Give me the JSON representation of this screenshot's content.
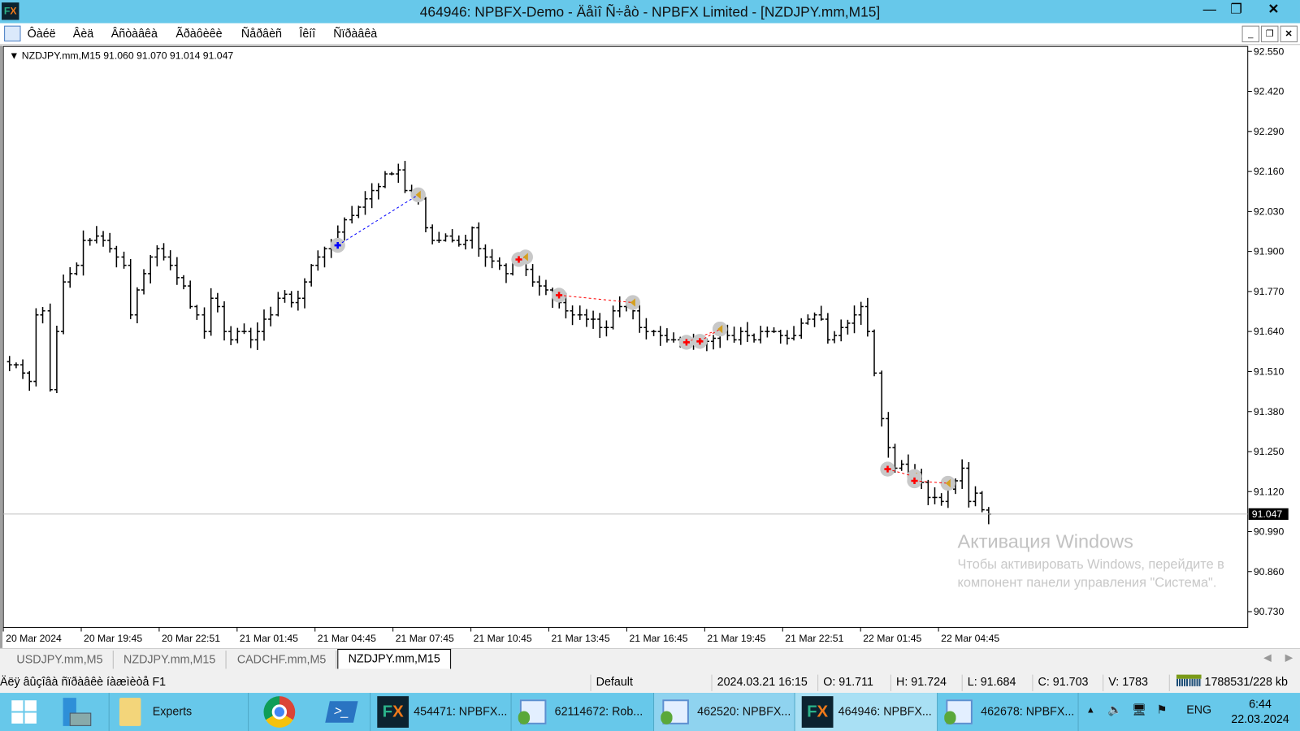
{
  "window": {
    "title": "464946: NPBFX-Demo - Äåìî Ñ÷åò - NPBFX Limited - [NZDJPY.mm,M15]",
    "controls": [
      "minimize",
      "restore",
      "close"
    ]
  },
  "menu": {
    "items": [
      "Ôàéë",
      "Âèä",
      "Âñòàâêà",
      "Ãðàôèêè",
      "Ñåðâèñ",
      "Îêíî",
      "Ñïðàâêà"
    ]
  },
  "chart": {
    "info": "NZDJPY.mm,M15  91.060 91.070 91.014 91.047",
    "current_price": "91.047",
    "watermark_title": "Активация Windows",
    "watermark_text": "Чтобы активировать Windows, перейдите в компонент панели управления \"Система\".",
    "colors": {
      "bars": "#000000",
      "buy": "#0000ff",
      "sell": "#ff0000",
      "close_marker": "#d4a020",
      "price_line": "#c0c0c0"
    }
  },
  "chart_data": {
    "type": "ohlc",
    "symbol": "NZDJPY.mm",
    "timeframe": "M15",
    "ylim": [
      90.73,
      92.55
    ],
    "y_ticks": [
      "92.550",
      "92.420",
      "92.290",
      "92.160",
      "92.030",
      "91.900",
      "91.770",
      "91.640",
      "91.510",
      "91.380",
      "91.250",
      "91.120",
      "90.990",
      "90.860",
      "90.730"
    ],
    "x_ticks": [
      "20 Mar 2024",
      "20 Mar 19:45",
      "20 Mar 22:51",
      "21 Mar 01:45",
      "21 Mar 04:45",
      "21 Mar 07:45",
      "21 Mar 10:45",
      "21 Mar 13:45",
      "21 Mar 16:45",
      "21 Mar 19:45",
      "21 Mar 22:51",
      "22 Mar 01:45",
      "22 Mar 04:45"
    ],
    "close": [
      91.532,
      91.532,
      91.505,
      91.478,
      91.694,
      91.707,
      91.451,
      91.64,
      91.801,
      91.828,
      91.855,
      91.936,
      91.936,
      91.95,
      91.936,
      91.909,
      91.882,
      91.855,
      91.694,
      91.775,
      91.828,
      91.882,
      91.909,
      91.882,
      91.855,
      91.815,
      91.788,
      91.721,
      91.694,
      91.64,
      91.748,
      91.721,
      91.64,
      91.613,
      91.64,
      91.64,
      91.613,
      91.64,
      91.68,
      91.694,
      91.748,
      91.761,
      91.734,
      91.748,
      91.801,
      91.855,
      91.882,
      91.909,
      91.923,
      91.963,
      92.003,
      92.017,
      92.044,
      92.071,
      92.098,
      92.111,
      92.152,
      92.152,
      92.165,
      92.098,
      92.084,
      92.071,
      91.977,
      91.936,
      91.936,
      91.95,
      91.936,
      91.923,
      91.936,
      91.977,
      91.909,
      91.882,
      91.869,
      91.855,
      91.828,
      91.869,
      91.882,
      91.842,
      91.801,
      91.788,
      91.775,
      91.748,
      91.734,
      91.707,
      91.694,
      91.694,
      91.68,
      91.68,
      91.653,
      91.653,
      91.707,
      91.721,
      91.721,
      91.707,
      91.653,
      91.64,
      91.64,
      91.627,
      91.613,
      91.613,
      91.608,
      91.6,
      91.6,
      91.6,
      91.608,
      91.618,
      91.64,
      91.627,
      91.613,
      91.64,
      91.627,
      91.613,
      91.64,
      91.64,
      91.64,
      91.627,
      91.618,
      91.627,
      91.667,
      91.68,
      91.694,
      91.68,
      91.613,
      91.627,
      91.653,
      91.667,
      91.694,
      91.721,
      91.64,
      91.505,
      91.357,
      91.263,
      91.196,
      91.209,
      91.169,
      91.182,
      91.15,
      91.101,
      91.101,
      91.088,
      91.128,
      91.155,
      91.196,
      91.088,
      91.115,
      91.061,
      91.047
    ],
    "last_bar": {
      "open": 91.06,
      "high": 91.07,
      "low": 91.014,
      "close": 91.047
    },
    "trades": [
      {
        "side": "buy",
        "entry_bar": 49,
        "entry": 91.92,
        "exit_bar": 61,
        "exit": 92.084
      },
      {
        "side": "sell",
        "entry_bar": 76,
        "entry": 91.874,
        "exit_bar": 77,
        "exit": 91.882
      },
      {
        "side": "sell",
        "entry_bar": 82,
        "entry": 91.758,
        "exit_bar": 93,
        "exit": 91.734
      },
      {
        "side": "sell",
        "entry_bar": 101,
        "entry": 91.605,
        "exit_bar": 106,
        "exit": 91.648
      },
      {
        "side": "sell",
        "entry_bar": 103,
        "entry": 91.608,
        "exit_bar": 106,
        "exit": 91.648
      },
      {
        "side": "sell",
        "entry_bar": 131,
        "entry": 91.193,
        "exit_bar": 135,
        "exit": 91.169
      },
      {
        "side": "sell",
        "entry_bar": 135,
        "entry": 91.155,
        "exit_bar": 140,
        "exit": 91.147
      }
    ]
  },
  "tabs": [
    {
      "label": "USDJPY.mm,M5"
    },
    {
      "label": "NZDJPY.mm,M15"
    },
    {
      "label": "CADCHF.mm,M5"
    },
    {
      "label": "NZDJPY.mm,M15",
      "active": true
    }
  ],
  "status": {
    "help": "Äëÿ âûçîâà ñïðàâêè íàæìèòå F1",
    "profile": "Default",
    "time": "2024.03.21 16:15",
    "open": "O: 91.711",
    "high": "H: 91.724",
    "low": "L: 91.684",
    "close": "C: 91.703",
    "volume": "V: 1783",
    "traffic": "1788531/228 kb"
  },
  "taskbar": {
    "items": [
      {
        "label": "Experts"
      },
      {
        "label": "454471: NPBFX..."
      },
      {
        "label": "62114672: Rob..."
      },
      {
        "label": "462520: NPBFX..."
      },
      {
        "label": "464946: NPBFX..."
      },
      {
        "label": "462678: NPBFX..."
      }
    ],
    "lang": "ENG",
    "clock_time": "6:44",
    "clock_date": "22.03.2024"
  }
}
